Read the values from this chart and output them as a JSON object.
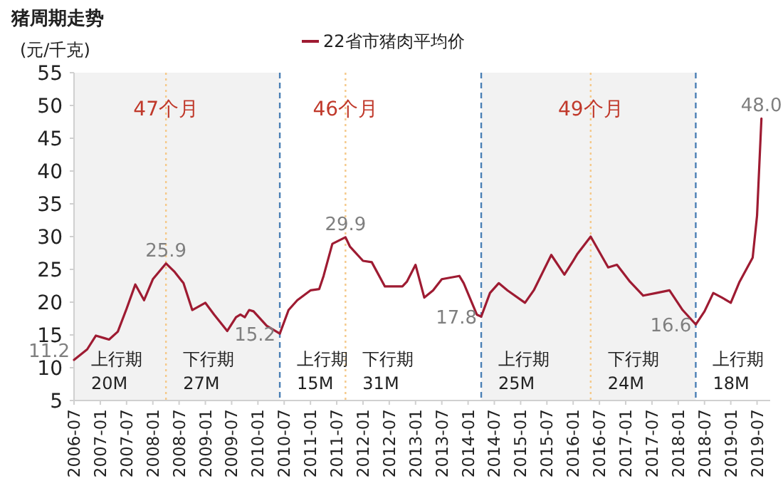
{
  "chart_data": {
    "type": "line",
    "title": "猪周期走势",
    "ylabel": "(元/千克)",
    "legend": "top",
    "grid": false,
    "x": [
      "2006-07",
      "2006-10",
      "2006-12",
      "2007-02",
      "2007-03",
      "2007-05",
      "2007-07",
      "2007-09",
      "2007-11",
      "2008-01",
      "2008-04",
      "2008-06",
      "2008-08",
      "2008-10",
      "2009-01",
      "2009-03",
      "2009-06",
      "2009-08",
      "2009-09",
      "2009-10",
      "2009-11",
      "2009-12",
      "2010-03",
      "2010-06",
      "2010-08",
      "2010-10",
      "2011-01",
      "2011-03",
      "2011-04",
      "2011-06",
      "2011-09",
      "2011-10",
      "2012-01",
      "2012-03",
      "2012-06",
      "2012-10",
      "2012-11",
      "2013-01",
      "2013-03",
      "2013-05",
      "2013-07",
      "2013-11",
      "2013-12",
      "2014-03",
      "2014-04",
      "2014-06",
      "2014-08",
      "2014-10",
      "2015-02",
      "2015-04",
      "2015-08",
      "2015-11",
      "2016-01",
      "2016-02",
      "2016-05",
      "2016-09",
      "2016-11",
      "2017-02",
      "2017-05",
      "2017-08",
      "2017-11",
      "2018-02",
      "2018-05",
      "2018-07",
      "2018-09",
      "2018-11",
      "2019-01",
      "2019-03",
      "2019-06",
      "2019-07",
      "2019-08"
    ],
    "series": [
      {
        "name": "22省市猪肉平均价",
        "color": "#9e1b32",
        "values": [
          11.2,
          12.8,
          14.9,
          14.5,
          14.3,
          15.5,
          19.0,
          22.7,
          20.3,
          23.5,
          25.9,
          24.6,
          22.9,
          18.8,
          19.9,
          18.1,
          15.6,
          17.7,
          18.1,
          17.7,
          18.8,
          18.6,
          16.4,
          15.2,
          18.8,
          20.3,
          21.8,
          22.0,
          24.0,
          28.9,
          29.9,
          28.5,
          26.3,
          26.1,
          22.4,
          22.4,
          23.1,
          25.7,
          20.7,
          21.8,
          23.5,
          24.0,
          22.9,
          18.1,
          17.8,
          21.4,
          22.9,
          21.8,
          19.9,
          21.8,
          27.2,
          24.2,
          26.3,
          27.4,
          30.0,
          25.3,
          25.7,
          23.1,
          21.0,
          21.4,
          21.8,
          18.8,
          16.6,
          18.6,
          21.4,
          20.7,
          19.9,
          23.1,
          26.8,
          33.2,
          48.0
        ]
      }
    ],
    "xlim": [
      "2006-07",
      "2019-10"
    ],
    "xticks": [
      "2006-07",
      "2007-01",
      "2007-07",
      "2008-01",
      "2008-07",
      "2009-01",
      "2009-07",
      "2010-01",
      "2010-07",
      "2011-01",
      "2011-07",
      "2012-01",
      "2012-07",
      "2013-01",
      "2013-07",
      "2014-01",
      "2014-07",
      "2015-01",
      "2015-07",
      "2016-01",
      "2016-07",
      "2017-01",
      "2017-07",
      "2018-01",
      "2018-07",
      "2019-01",
      "2019-07"
    ],
    "ylim": [
      5,
      55
    ],
    "yticks": [
      5,
      10,
      15,
      20,
      25,
      30,
      35,
      40,
      45,
      50,
      55
    ],
    "bands": [
      {
        "axis": "x",
        "from": "2006-07",
        "to": "2010-06",
        "color": "#f2f2f2"
      },
      {
        "axis": "x",
        "from": "2014-04",
        "to": "2018-05",
        "color": "#f2f2f2"
      }
    ],
    "ref_lines": [
      {
        "axis": "x",
        "value": "2010-06",
        "color": "#4a7fb5",
        "line_style": "dashed"
      },
      {
        "axis": "x",
        "value": "2014-04",
        "color": "#4a7fb5",
        "line_style": "dashed"
      },
      {
        "axis": "x",
        "value": "2018-05",
        "color": "#4a7fb5",
        "line_style": "dashed"
      },
      {
        "axis": "x",
        "value": "2008-04",
        "label": "47个月",
        "color": "#f5c98a",
        "line_style": "dotted"
      },
      {
        "axis": "x",
        "value": "2011-09",
        "label": "46个月",
        "color": "#f5c98a",
        "line_style": "dotted"
      },
      {
        "axis": "x",
        "value": "2016-05",
        "label": "49个月",
        "color": "#f5c98a",
        "line_style": "dotted"
      }
    ],
    "annotations": [
      {
        "text": "11.2",
        "x": "2006-07",
        "y": 11.2
      },
      {
        "text": "25.9",
        "x": "2008-04",
        "y": 25.9
      },
      {
        "text": "15.2",
        "x": "2010-06",
        "y": 15.2
      },
      {
        "text": "29.9",
        "x": "2011-09",
        "y": 29.9
      },
      {
        "text": "17.8",
        "x": "2014-04",
        "y": 17.8
      },
      {
        "text": "16.6",
        "x": "2018-05",
        "y": 16.6
      },
      {
        "text": "48.0",
        "x": "2019-08",
        "y": 48.0
      },
      "上行期\n20M",
      "下行期\n27M",
      "上行期\n15M",
      "下行期\n31M",
      "上行期\n25M",
      "下行期\n24M",
      "上行期\n18M"
    ]
  }
}
